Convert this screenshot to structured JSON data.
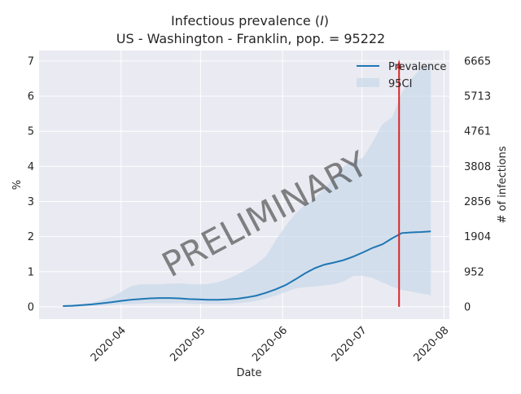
{
  "chart_data": {
    "type": "line",
    "title": "Infectious prevalence (I)",
    "title_parts": {
      "prefix": "Infectious prevalence (",
      "variable": "I",
      "suffix": ")"
    },
    "subtitle": "US - Washington - Franklin, pop. = 95222",
    "xlabel": "Date",
    "ylabel": "%",
    "ylabel_right": "# of infections",
    "watermark": "PRELIMINARY",
    "x_start": "2020-03-10",
    "x_end": "2020-07-27",
    "xlim": [
      "2020-03-01",
      "2020-08-03"
    ],
    "ylim": [
      -0.35,
      7.3
    ],
    "x_ticks": [
      "2020-04-01",
      "2020-05-01",
      "2020-06-01",
      "2020-07-01",
      "2020-08-01"
    ],
    "x_tick_labels": [
      "2020-04",
      "2020-05",
      "2020-06",
      "2020-07",
      "2020-08"
    ],
    "y_ticks": [
      0,
      1,
      2,
      3,
      4,
      5,
      6,
      7
    ],
    "y_tick_labels": [
      "0",
      "1",
      "2",
      "3",
      "4",
      "5",
      "6",
      "7"
    ],
    "y_right_ticks": [
      0,
      1,
      2,
      3,
      4,
      5,
      6,
      7
    ],
    "y_right_tick_labels": [
      "0",
      "952",
      "1904",
      "2856",
      "3808",
      "4761",
      "5713",
      "6665"
    ],
    "grid": true,
    "legend_placement": "top-right",
    "series": [
      {
        "name": "Prevalence",
        "color": "#1f77b4",
        "values": [
          0.02,
          0.03,
          0.05,
          0.07,
          0.1,
          0.13,
          0.17,
          0.2,
          0.22,
          0.24,
          0.25,
          0.25,
          0.24,
          0.22,
          0.21,
          0.2,
          0.2,
          0.21,
          0.23,
          0.27,
          0.32,
          0.4,
          0.5,
          0.62,
          0.78,
          0.95,
          1.1,
          1.2,
          1.26,
          1.33,
          1.43,
          1.55,
          1.68,
          1.78,
          1.95,
          2.1,
          2.12,
          2.13,
          2.15
        ]
      }
    ],
    "band": {
      "name": "95CI",
      "color": "#c9d9ea",
      "upper": [
        0.05,
        0.06,
        0.08,
        0.12,
        0.19,
        0.28,
        0.42,
        0.58,
        0.64,
        0.64,
        0.64,
        0.66,
        0.67,
        0.65,
        0.64,
        0.65,
        0.7,
        0.79,
        0.92,
        1.06,
        1.22,
        1.45,
        1.9,
        2.3,
        2.65,
        2.9,
        3.1,
        3.35,
        3.7,
        4.0,
        4.15,
        4.25,
        4.7,
        5.2,
        5.4,
        6.1,
        6.5,
        6.8,
        6.9
      ],
      "lower": [
        0.0,
        0.0,
        0.01,
        0.02,
        0.03,
        0.05,
        0.07,
        0.08,
        0.09,
        0.1,
        0.1,
        0.1,
        0.1,
        0.09,
        0.08,
        0.08,
        0.08,
        0.08,
        0.1,
        0.13,
        0.17,
        0.24,
        0.32,
        0.42,
        0.52,
        0.56,
        0.58,
        0.61,
        0.64,
        0.72,
        0.88,
        0.88,
        0.82,
        0.7,
        0.57,
        0.48,
        0.43,
        0.38,
        0.33
      ]
    },
    "marker_line": {
      "date": "2020-07-15",
      "color": "#d62728"
    }
  }
}
